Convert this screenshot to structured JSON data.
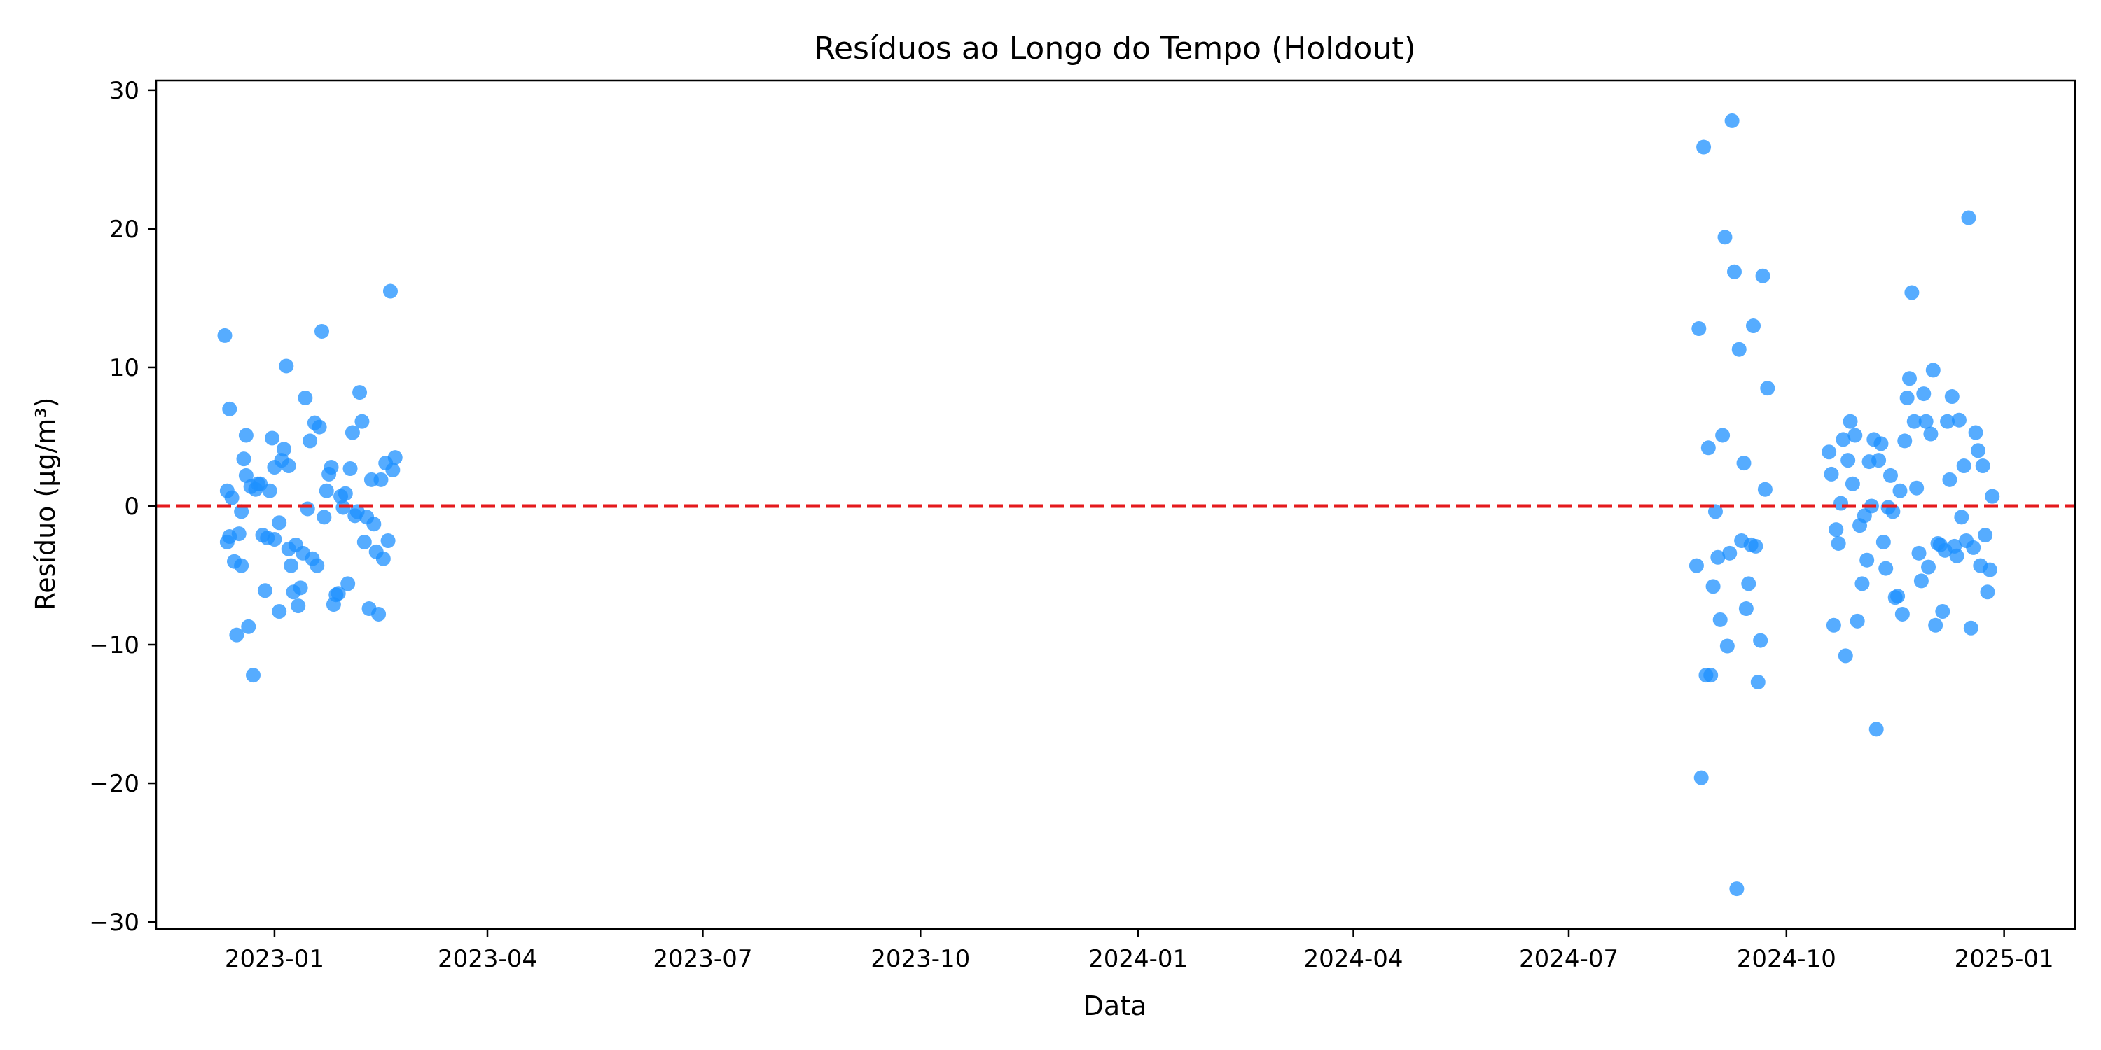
{
  "chart_data": {
    "type": "scatter",
    "title": "Resíduos ao Longo do Tempo (Holdout)",
    "xlabel": "Data",
    "ylabel": "Resíduo (µg/m³)",
    "xlim": [
      "2022-11-12",
      "2025-01-31"
    ],
    "ylim": [
      -30.5,
      30.7
    ],
    "x_ticks": [
      "2023-01",
      "2023-04",
      "2023-07",
      "2023-10",
      "2024-01",
      "2024-04",
      "2024-07",
      "2024-10",
      "2025-01"
    ],
    "y_ticks": [
      -30,
      -20,
      -10,
      0,
      10,
      20,
      30
    ],
    "y_tick_labels": [
      "−30",
      "−20",
      "−10",
      "0",
      "10",
      "20",
      "30"
    ],
    "grid": false,
    "point_color": "#1E90FF",
    "reference_line": {
      "y": 0,
      "color": "#E41A1C",
      "style": "dashed"
    },
    "series": [
      {
        "points": [
          [
            "2022-12-11",
            12.3
          ],
          [
            "2022-12-12",
            -2.6
          ],
          [
            "2022-12-12",
            1.1
          ],
          [
            "2022-12-13",
            7.0
          ],
          [
            "2022-12-13",
            -2.2
          ],
          [
            "2022-12-14",
            0.6
          ],
          [
            "2022-12-15",
            -4.0
          ],
          [
            "2022-12-16",
            -9.3
          ],
          [
            "2022-12-17",
            -2.0
          ],
          [
            "2022-12-18",
            -4.3
          ],
          [
            "2022-12-18",
            -0.4
          ],
          [
            "2022-12-19",
            3.4
          ],
          [
            "2022-12-20",
            2.2
          ],
          [
            "2022-12-20",
            5.1
          ],
          [
            "2022-12-21",
            -8.7
          ],
          [
            "2022-12-22",
            1.4
          ],
          [
            "2022-12-23",
            -12.2
          ],
          [
            "2022-12-24",
            1.2
          ],
          [
            "2022-12-25",
            1.6
          ],
          [
            "2022-12-26",
            1.6
          ],
          [
            "2022-12-27",
            -2.1
          ],
          [
            "2022-12-28",
            -6.1
          ],
          [
            "2022-12-29",
            -2.3
          ],
          [
            "2022-12-30",
            1.1
          ],
          [
            "2022-12-31",
            4.9
          ],
          [
            "2023-01-01",
            -2.4
          ],
          [
            "2023-01-01",
            2.8
          ],
          [
            "2023-01-03",
            -7.6
          ],
          [
            "2023-01-03",
            -1.2
          ],
          [
            "2023-01-04",
            3.3
          ],
          [
            "2023-01-05",
            4.1
          ],
          [
            "2023-01-06",
            10.1
          ],
          [
            "2023-01-07",
            2.9
          ],
          [
            "2023-01-07",
            -3.1
          ],
          [
            "2023-01-08",
            -4.3
          ],
          [
            "2023-01-09",
            -6.2
          ],
          [
            "2023-01-10",
            -2.8
          ],
          [
            "2023-01-11",
            -7.2
          ],
          [
            "2023-01-12",
            -5.9
          ],
          [
            "2023-01-13",
            -3.4
          ],
          [
            "2023-01-14",
            7.8
          ],
          [
            "2023-01-15",
            -0.2
          ],
          [
            "2023-01-16",
            4.7
          ],
          [
            "2023-01-17",
            -3.8
          ],
          [
            "2023-01-18",
            6.0
          ],
          [
            "2023-01-19",
            -4.3
          ],
          [
            "2023-01-20",
            5.7
          ],
          [
            "2023-01-21",
            12.6
          ],
          [
            "2023-01-22",
            -0.8
          ],
          [
            "2023-01-23",
            1.1
          ],
          [
            "2023-01-24",
            2.3
          ],
          [
            "2023-01-25",
            2.8
          ],
          [
            "2023-01-26",
            -7.1
          ],
          [
            "2023-01-27",
            -6.4
          ],
          [
            "2023-01-28",
            -6.3
          ],
          [
            "2023-01-29",
            0.7
          ],
          [
            "2023-01-30",
            -0.1
          ],
          [
            "2023-01-31",
            0.9
          ],
          [
            "2023-02-01",
            -5.6
          ],
          [
            "2023-02-02",
            2.7
          ],
          [
            "2023-02-03",
            5.3
          ],
          [
            "2023-02-04",
            -0.7
          ],
          [
            "2023-02-05",
            -0.4
          ],
          [
            "2023-02-06",
            8.2
          ],
          [
            "2023-02-07",
            6.1
          ],
          [
            "2023-02-08",
            -2.6
          ],
          [
            "2023-02-09",
            -0.8
          ],
          [
            "2023-02-10",
            -7.4
          ],
          [
            "2023-02-11",
            1.9
          ],
          [
            "2023-02-12",
            -1.3
          ],
          [
            "2023-02-13",
            -3.3
          ],
          [
            "2023-02-14",
            -7.8
          ],
          [
            "2023-02-15",
            1.9
          ],
          [
            "2023-02-16",
            -3.8
          ],
          [
            "2023-02-17",
            3.1
          ],
          [
            "2023-02-18",
            -2.5
          ],
          [
            "2023-02-19",
            15.5
          ],
          [
            "2023-02-20",
            2.6
          ],
          [
            "2023-02-21",
            3.5
          ],
          [
            "2024-08-24",
            -4.3
          ],
          [
            "2024-08-25",
            12.8
          ],
          [
            "2024-08-26",
            -19.6
          ],
          [
            "2024-08-27",
            25.9
          ],
          [
            "2024-08-28",
            -12.2
          ],
          [
            "2024-08-29",
            4.2
          ],
          [
            "2024-08-30",
            -12.2
          ],
          [
            "2024-08-31",
            -5.8
          ],
          [
            "2024-09-01",
            -0.4
          ],
          [
            "2024-09-02",
            -3.7
          ],
          [
            "2024-09-03",
            -8.2
          ],
          [
            "2024-09-04",
            5.1
          ],
          [
            "2024-09-05",
            19.4
          ],
          [
            "2024-09-06",
            -10.1
          ],
          [
            "2024-09-07",
            -3.4
          ],
          [
            "2024-09-08",
            27.8
          ],
          [
            "2024-09-09",
            16.9
          ],
          [
            "2024-09-10",
            -27.6
          ],
          [
            "2024-09-11",
            11.3
          ],
          [
            "2024-09-12",
            -2.5
          ],
          [
            "2024-09-13",
            3.1
          ],
          [
            "2024-09-14",
            -7.4
          ],
          [
            "2024-09-15",
            -5.6
          ],
          [
            "2024-09-16",
            -2.8
          ],
          [
            "2024-09-17",
            13.0
          ],
          [
            "2024-09-18",
            -2.9
          ],
          [
            "2024-09-19",
            -12.7
          ],
          [
            "2024-09-20",
            -9.7
          ],
          [
            "2024-09-21",
            16.6
          ],
          [
            "2024-09-22",
            1.2
          ],
          [
            "2024-09-23",
            8.5
          ],
          [
            "2024-10-19",
            3.9
          ],
          [
            "2024-10-20",
            2.3
          ],
          [
            "2024-10-21",
            -8.6
          ],
          [
            "2024-10-22",
            -1.7
          ],
          [
            "2024-10-23",
            -2.7
          ],
          [
            "2024-10-24",
            0.2
          ],
          [
            "2024-10-25",
            4.8
          ],
          [
            "2024-10-26",
            -10.8
          ],
          [
            "2024-10-27",
            3.3
          ],
          [
            "2024-10-28",
            6.1
          ],
          [
            "2024-10-29",
            1.6
          ],
          [
            "2024-10-30",
            5.1
          ],
          [
            "2024-10-31",
            -8.3
          ],
          [
            "2024-11-01",
            -1.4
          ],
          [
            "2024-11-02",
            -5.6
          ],
          [
            "2024-11-03",
            -0.7
          ],
          [
            "2024-11-04",
            -3.9
          ],
          [
            "2024-11-05",
            3.2
          ],
          [
            "2024-11-06",
            0.0
          ],
          [
            "2024-11-07",
            4.8
          ],
          [
            "2024-11-08",
            -16.1
          ],
          [
            "2024-11-09",
            3.3
          ],
          [
            "2024-11-10",
            4.5
          ],
          [
            "2024-11-11",
            -2.6
          ],
          [
            "2024-11-12",
            -4.5
          ],
          [
            "2024-11-13",
            -0.1
          ],
          [
            "2024-11-14",
            2.2
          ],
          [
            "2024-11-15",
            -0.4
          ],
          [
            "2024-11-16",
            -6.6
          ],
          [
            "2024-11-17",
            -6.5
          ],
          [
            "2024-11-18",
            1.1
          ],
          [
            "2024-11-19",
            -7.8
          ],
          [
            "2024-11-20",
            4.7
          ],
          [
            "2024-11-21",
            7.8
          ],
          [
            "2024-11-22",
            9.2
          ],
          [
            "2024-11-23",
            15.4
          ],
          [
            "2024-11-24",
            6.1
          ],
          [
            "2024-11-25",
            1.3
          ],
          [
            "2024-11-26",
            -3.4
          ],
          [
            "2024-11-27",
            -5.4
          ],
          [
            "2024-11-28",
            8.1
          ],
          [
            "2024-11-29",
            6.1
          ],
          [
            "2024-11-30",
            -4.4
          ],
          [
            "2024-12-01",
            5.2
          ],
          [
            "2024-12-02",
            9.8
          ],
          [
            "2024-12-03",
            -8.6
          ],
          [
            "2024-12-04",
            -2.7
          ],
          [
            "2024-12-05",
            -2.8
          ],
          [
            "2024-12-06",
            -7.6
          ],
          [
            "2024-12-07",
            -3.2
          ],
          [
            "2024-12-08",
            6.1
          ],
          [
            "2024-12-09",
            1.9
          ],
          [
            "2024-12-10",
            7.9
          ],
          [
            "2024-12-11",
            -2.9
          ],
          [
            "2024-12-12",
            -3.6
          ],
          [
            "2024-12-13",
            6.2
          ],
          [
            "2024-12-14",
            -0.8
          ],
          [
            "2024-12-15",
            2.9
          ],
          [
            "2024-12-16",
            -2.5
          ],
          [
            "2024-12-17",
            20.8
          ],
          [
            "2024-12-18",
            -8.8
          ],
          [
            "2024-12-19",
            -3.0
          ],
          [
            "2024-12-20",
            5.3
          ],
          [
            "2024-12-21",
            4.0
          ],
          [
            "2024-12-22",
            -4.3
          ],
          [
            "2024-12-23",
            2.9
          ],
          [
            "2024-12-24",
            -2.1
          ],
          [
            "2024-12-25",
            -6.2
          ],
          [
            "2024-12-26",
            -4.6
          ],
          [
            "2024-12-27",
            0.7
          ]
        ]
      }
    ]
  }
}
